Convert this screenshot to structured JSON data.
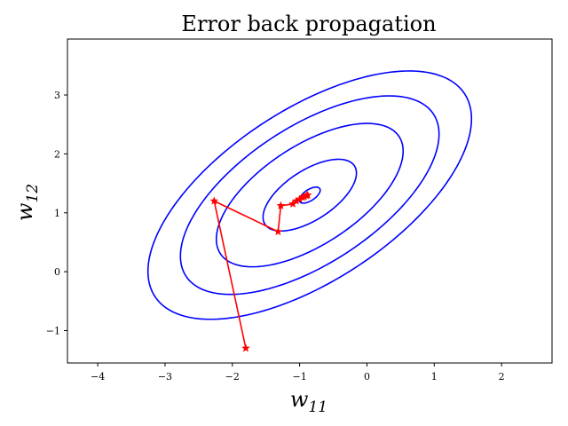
{
  "chart_data": {
    "type": "line",
    "title": "Error back propagation",
    "xlabel": "w",
    "xlabel_sub": "11",
    "ylabel": "w",
    "ylabel_sub": "12",
    "xlim": [
      -4.45,
      2.75
    ],
    "ylim": [
      -1.55,
      3.95
    ],
    "xticks": [
      -4,
      -3,
      -2,
      -1,
      0,
      1,
      2
    ],
    "yticks": [
      -1,
      0,
      1,
      2,
      3
    ],
    "xtick_labels": [
      "−4",
      "−3",
      "−2",
      "−1",
      "0",
      "1",
      "2"
    ],
    "ytick_labels": [
      "−1",
      "0",
      "1",
      "2",
      "3"
    ],
    "grid": false,
    "contour_color": "#0000ff",
    "path_color": "#ff0000",
    "contours": {
      "center": [
        -0.85,
        1.3
      ],
      "matrix": [
        [
          1.0,
          -0.7
        ],
        [
          -0.7,
          1.3
        ]
      ],
      "levels": [
        0.015,
        0.3,
        1.2,
        2.3,
        3.6
      ]
    },
    "path": {
      "x": [
        -1.8,
        -2.27,
        -1.32,
        -1.28,
        -1.1,
        -1.05,
        -1.0,
        -0.96,
        -0.93,
        -0.9,
        -0.88
      ],
      "y": [
        -1.3,
        1.2,
        0.68,
        1.12,
        1.15,
        1.2,
        1.23,
        1.26,
        1.27,
        1.29,
        1.3
      ]
    }
  }
}
